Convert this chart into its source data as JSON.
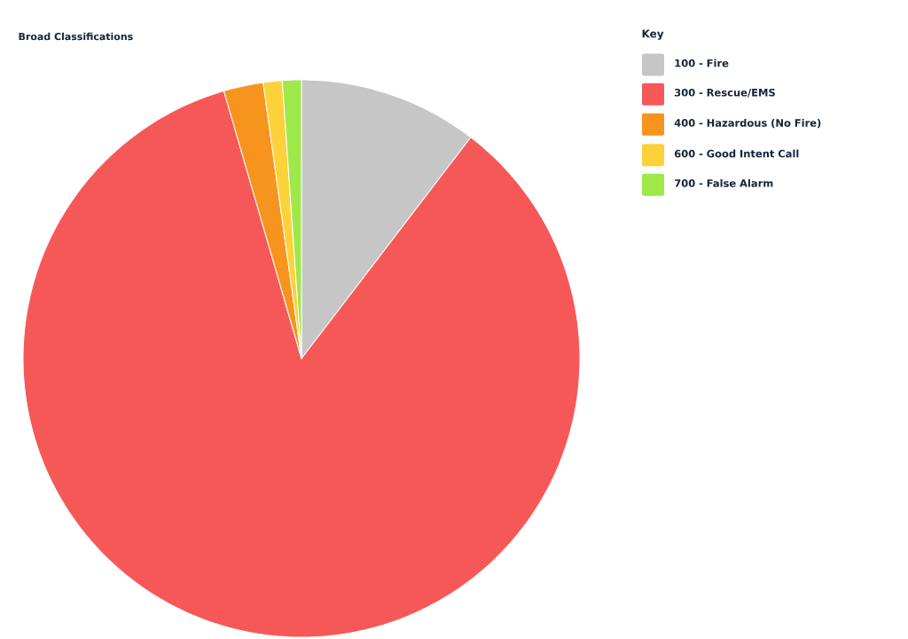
{
  "chart_data": {
    "type": "pie",
    "title": "Broad Classifications",
    "legend_title": "Key",
    "categories": [
      "100 - Fire",
      "300 - Rescue/EMS",
      "400 - Hazardous (No Fire)",
      "600 - Good Intent Call",
      "700 - False Alarm"
    ],
    "values": [
      10.4,
      85.1,
      2.3,
      1.1,
      1.1
    ],
    "colors": [
      "#c5c6c5",
      "#f65858",
      "#f7941d",
      "#fdd13a",
      "#9fe84a"
    ],
    "legend": "right"
  }
}
